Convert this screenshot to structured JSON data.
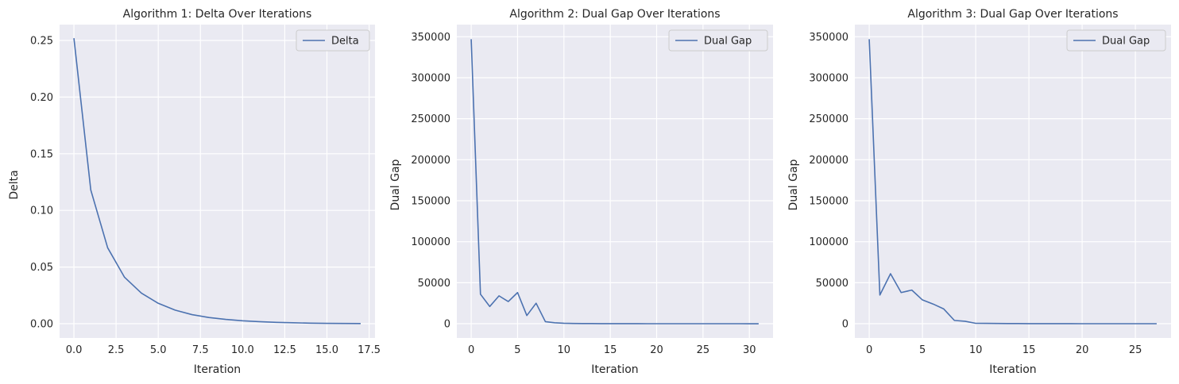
{
  "style": {
    "background": "#ffffff",
    "plot_bg": "#eaeaf2",
    "grid": "#ffffff",
    "line": "#4c72b0",
    "text": "#262626",
    "legend_border": "#cccccc"
  },
  "chart_data": [
    {
      "type": "line",
      "title": "Algorithm 1: Delta Over Iterations",
      "xlabel": "Iteration",
      "ylabel": "Delta",
      "xlim": [
        -0.85,
        17.85
      ],
      "ylim": [
        -0.0126,
        0.264
      ],
      "xticks": [
        0,
        2.5,
        5,
        7.5,
        10,
        12.5,
        15,
        17.5
      ],
      "xtick_labels": [
        "0.0",
        "2.5",
        "5.0",
        "7.5",
        "10.0",
        "12.5",
        "15.0",
        "17.5"
      ],
      "yticks": [
        0,
        0.05,
        0.1,
        0.15,
        0.2,
        0.25
      ],
      "ytick_labels": [
        "0.00",
        "0.05",
        "0.10",
        "0.15",
        "0.20",
        "0.25"
      ],
      "grid": true,
      "legend": "upper right",
      "series": [
        {
          "name": "Delta",
          "x": [
            0,
            1,
            2,
            3,
            4,
            5,
            6,
            7,
            8,
            9,
            10,
            11,
            12,
            13,
            14,
            15,
            16,
            17
          ],
          "y": [
            0.252,
            0.118,
            0.067,
            0.041,
            0.027,
            0.018,
            0.012,
            0.008,
            0.0055,
            0.0038,
            0.0026,
            0.0018,
            0.0012,
            0.0008,
            0.0005,
            0.0003,
            0.0002,
            0.0001
          ]
        }
      ]
    },
    {
      "type": "line",
      "title": "Algorithm 2: Dual Gap Over Iterations",
      "xlabel": "Iteration",
      "ylabel": "Dual Gap",
      "xlim": [
        -1.55,
        32.55
      ],
      "ylim": [
        -17400,
        364800
      ],
      "xticks": [
        0,
        5,
        10,
        15,
        20,
        25,
        30
      ],
      "xtick_labels": [
        "0",
        "5",
        "10",
        "15",
        "20",
        "25",
        "30"
      ],
      "yticks": [
        0,
        50000,
        100000,
        150000,
        200000,
        250000,
        300000,
        350000
      ],
      "ytick_labels": [
        "0",
        "50000",
        "100000",
        "150000",
        "200000",
        "250000",
        "300000",
        "350000"
      ],
      "grid": true,
      "legend": "upper right",
      "series": [
        {
          "name": "Dual Gap",
          "x": [
            0,
            1,
            2,
            3,
            4,
            5,
            6,
            7,
            8,
            9,
            10,
            11,
            12,
            13,
            14,
            15,
            16,
            17,
            18,
            19,
            20,
            21,
            22,
            23,
            24,
            25,
            26,
            27,
            28,
            29,
            30,
            31
          ],
          "y": [
            347000,
            36000,
            21000,
            34000,
            27000,
            38000,
            10000,
            25000,
            2500,
            1200,
            600,
            300,
            200,
            150,
            100,
            80,
            60,
            50,
            40,
            30,
            25,
            20,
            15,
            12,
            10,
            8,
            6,
            5,
            4,
            3,
            2,
            1
          ]
        }
      ]
    },
    {
      "type": "line",
      "title": "Algorithm 3: Dual Gap Over Iterations",
      "xlabel": "Iteration",
      "ylabel": "Dual Gap",
      "xlim": [
        -1.35,
        28.35
      ],
      "ylim": [
        -17400,
        364800
      ],
      "xticks": [
        0,
        5,
        10,
        15,
        20,
        25
      ],
      "xtick_labels": [
        "0",
        "5",
        "10",
        "15",
        "20",
        "25"
      ],
      "yticks": [
        0,
        50000,
        100000,
        150000,
        200000,
        250000,
        300000,
        350000
      ],
      "ytick_labels": [
        "0",
        "50000",
        "100000",
        "150000",
        "200000",
        "250000",
        "300000",
        "350000"
      ],
      "grid": true,
      "legend": "upper right",
      "series": [
        {
          "name": "Dual Gap",
          "x": [
            0,
            1,
            2,
            3,
            4,
            5,
            6,
            7,
            8,
            9,
            10,
            11,
            12,
            13,
            14,
            15,
            16,
            17,
            18,
            19,
            20,
            21,
            22,
            23,
            24,
            25,
            26,
            27
          ],
          "y": [
            347000,
            35000,
            61000,
            38000,
            41000,
            29000,
            24000,
            18000,
            4000,
            3000,
            500,
            400,
            300,
            200,
            150,
            100,
            80,
            60,
            50,
            40,
            30,
            25,
            20,
            15,
            10,
            8,
            5,
            3
          ]
        }
      ]
    }
  ]
}
